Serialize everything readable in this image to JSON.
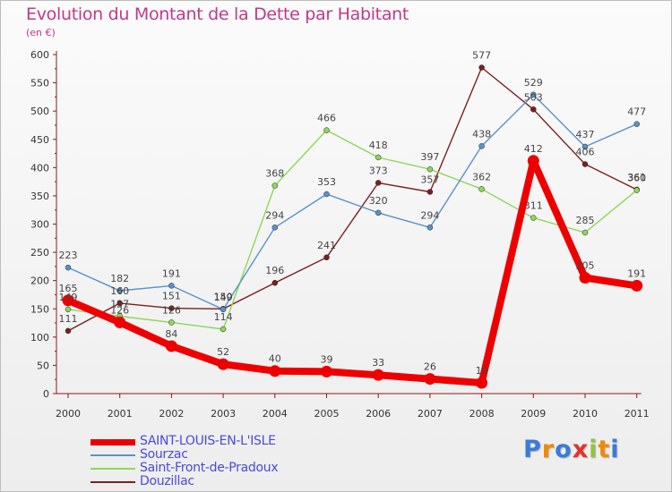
{
  "chart": {
    "title": "Evolution du Montant de la Dette par Habitant",
    "subtitle": "(en €)"
  },
  "logo": {
    "text": "Proxiti"
  },
  "chart_data": {
    "type": "line",
    "title": "Evolution du Montant de la Dette par Habitant",
    "subtitle": "(en €)",
    "xlabel": "",
    "ylabel": "",
    "x": [
      "2000",
      "2001",
      "2002",
      "2003",
      "2004",
      "2005",
      "2006",
      "2007",
      "2008",
      "2009",
      "2010",
      "2011"
    ],
    "ylim": [
      0,
      600
    ],
    "yticks": [
      0,
      50,
      100,
      150,
      200,
      250,
      300,
      350,
      400,
      450,
      500,
      550,
      600
    ],
    "grid": false,
    "legend_position": "bottom-left",
    "series": [
      {
        "name": "SAINT-LOUIS-EN-L'ISLE",
        "color": "#ee0000",
        "values": [
          165,
          126,
          84,
          52,
          40,
          39,
          33,
          26,
          19,
          412,
          205,
          191
        ]
      },
      {
        "name": "Sourzac",
        "color": "#5a92c8",
        "values": [
          223,
          182,
          191,
          149,
          294,
          353,
          320,
          294,
          438,
          529,
          437,
          477
        ]
      },
      {
        "name": "Saint-Front-de-Pradoux",
        "color": "#8fd65a",
        "values": [
          149,
          137,
          126,
          114,
          368,
          466,
          418,
          397,
          362,
          311,
          285,
          360
        ]
      },
      {
        "name": "Douzillac",
        "color": "#7a2020",
        "values": [
          111,
          160,
          151,
          150,
          196,
          241,
          373,
          357,
          577,
          503,
          406,
          361
        ]
      }
    ]
  }
}
